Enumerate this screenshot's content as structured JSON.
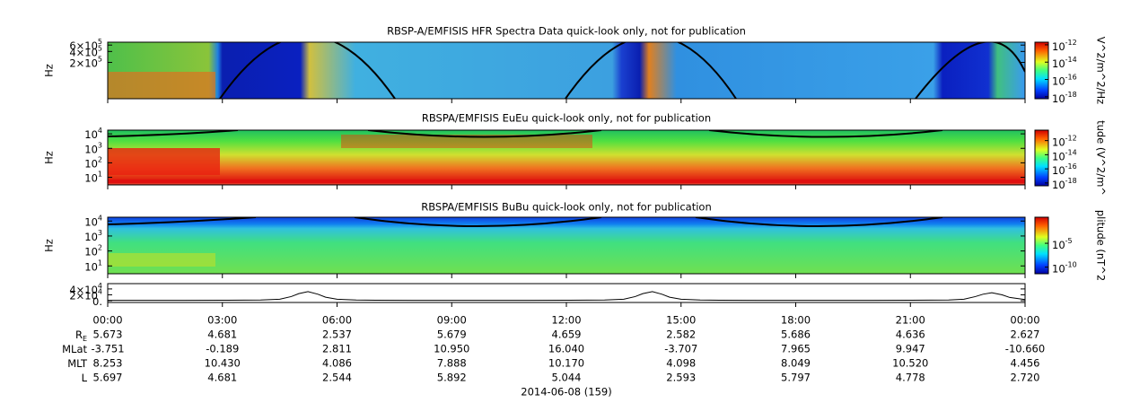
{
  "chart_data": [
    {
      "type": "spectrogram",
      "title": "RBSP-A/EMFISIS  HFR Spectra Data quick-look only, not for publication",
      "ylabel": "Hz",
      "yscale": "log",
      "ylim": [
        20000,
        720000
      ],
      "yticks": [
        {
          "value": 200000,
          "label": "2×10",
          "exp": "5"
        },
        {
          "value": 400000,
          "label": "4×10",
          "exp": "5"
        },
        {
          "value": 600000,
          "label": "6×10",
          "exp": "5"
        }
      ],
      "colorbar": {
        "label": "V^2/m^2/Hz",
        "scale": "log",
        "clim": [
          6e-19,
          2e-12
        ],
        "ticks": [
          {
            "value": 1e-12,
            "label": "10",
            "exp": "-12"
          },
          {
            "value": 1e-14,
            "label": "10",
            "exp": "-14"
          },
          {
            "value": 1e-16,
            "label": "10",
            "exp": "-16"
          },
          {
            "value": 1e-18,
            "label": "10",
            "exp": "-18"
          }
        ]
      }
    },
    {
      "type": "spectrogram",
      "title": "RBSPA/EMFISIS  EuEu quick-look only, not for publication",
      "ylabel": "Hz",
      "yscale": "log",
      "ylim": [
        3,
        18000
      ],
      "yticks": [
        {
          "value": 10,
          "label": "10",
          "exp": "1"
        },
        {
          "value": 100,
          "label": "10",
          "exp": "2"
        },
        {
          "value": 1000,
          "label": "10",
          "exp": "3"
        },
        {
          "value": 10000,
          "label": "10",
          "exp": "4"
        }
      ],
      "colorbar": {
        "label": "tude (V^2/m^",
        "scale": "log",
        "clim": [
          4e-19,
          3e-11
        ],
        "ticks": [
          {
            "value": 1e-12,
            "label": "10",
            "exp": "-12"
          },
          {
            "value": 1e-14,
            "label": "10",
            "exp": "-14"
          },
          {
            "value": 1e-16,
            "label": "10",
            "exp": "-16"
          },
          {
            "value": 1e-18,
            "label": "10",
            "exp": "-18"
          }
        ]
      }
    },
    {
      "type": "spectrogram",
      "title": "RBSPA/EMFISIS  BuBu quick-look only, not for publication",
      "ylabel": "Hz",
      "yscale": "log",
      "ylim": [
        3,
        18000
      ],
      "yticks": [
        {
          "value": 10,
          "label": "10",
          "exp": "1"
        },
        {
          "value": 100,
          "label": "10",
          "exp": "2"
        },
        {
          "value": 1000,
          "label": "10",
          "exp": "3"
        },
        {
          "value": 10000,
          "label": "10",
          "exp": "4"
        }
      ],
      "colorbar": {
        "label": "plitude (nT^2",
        "scale": "log",
        "clim": [
          4e-12,
          3
        ],
        "ticks": [
          {
            "value": 1e-05,
            "label": "10",
            "exp": "-5"
          },
          {
            "value": 1e-10,
            "label": "10",
            "exp": "-10"
          }
        ]
      }
    },
    {
      "type": "line",
      "color": "#000000",
      "ylim": [
        -6000,
        58000
      ],
      "yticks": [
        {
          "value": 0,
          "label": "0."
        },
        {
          "value": 20000,
          "label": "2×10",
          "exp": "4"
        },
        {
          "value": 40000,
          "label": "4×10",
          "exp": "4"
        }
      ],
      "x": [
        0,
        1,
        2,
        3,
        4,
        4.5,
        4.8,
        5.0,
        5.24,
        5.5,
        5.7,
        6,
        6.5,
        7,
        8,
        9,
        10,
        11,
        12,
        13,
        13.5,
        13.8,
        14.0,
        14.25,
        14.5,
        14.7,
        15,
        15.5,
        16,
        17,
        18,
        19,
        20,
        21,
        22,
        22.4,
        22.7,
        22.9,
        23.13,
        23.4,
        23.6,
        24
      ],
      "values": [
        1200,
        1200,
        1300,
        1500,
        2200,
        5000,
        14000,
        24000,
        31000,
        22000,
        12000,
        5000,
        2500,
        1800,
        1400,
        1200,
        1200,
        1300,
        1600,
        2400,
        5000,
        14000,
        24000,
        31000,
        22000,
        12000,
        5000,
        2500,
        1800,
        1400,
        1200,
        1200,
        1300,
        1600,
        2400,
        5000,
        14000,
        22000,
        27000,
        20000,
        11000,
        4000
      ]
    }
  ],
  "xaxis": {
    "xlim": [
      0,
      24
    ],
    "xticks": [
      {
        "value": 0,
        "label": "00:00"
      },
      {
        "value": 3,
        "label": "03:00"
      },
      {
        "value": 6,
        "label": "06:00"
      },
      {
        "value": 9,
        "label": "09:00"
      },
      {
        "value": 12,
        "label": "12:00"
      },
      {
        "value": 15,
        "label": "15:00"
      },
      {
        "value": 18,
        "label": "18:00"
      },
      {
        "value": 21,
        "label": "21:00"
      },
      {
        "value": 24,
        "label": "00:00"
      }
    ],
    "date": "2014-06-08 (159)"
  },
  "ephemeris": {
    "rows": [
      {
        "label": "R",
        "sub": "E",
        "values": [
          "5.673",
          "4.681",
          "2.537",
          "5.679",
          "4.659",
          "2.582",
          "5.686",
          "4.636",
          "2.627"
        ]
      },
      {
        "label": "MLat",
        "values": [
          "-3.751",
          "-0.189",
          "2.811",
          "10.950",
          "16.040",
          "-3.707",
          "7.965",
          "9.947",
          "-10.660"
        ]
      },
      {
        "label": "MLT",
        "values": [
          "8.253",
          "10.430",
          "4.086",
          "7.888",
          "10.170",
          "4.098",
          "8.049",
          "10.520",
          "4.456"
        ]
      },
      {
        "label": "L",
        "values": [
          "5.697",
          "4.681",
          "2.544",
          "5.892",
          "5.044",
          "2.593",
          "5.797",
          "4.778",
          "2.720"
        ]
      }
    ]
  }
}
